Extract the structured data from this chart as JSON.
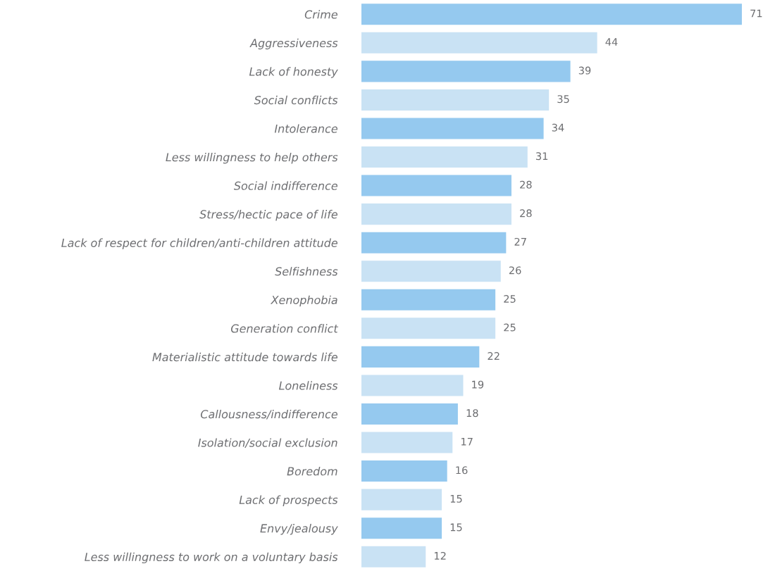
{
  "chart_data": {
    "type": "bar",
    "orientation": "horizontal",
    "data_labels": true,
    "categories": [
      "Crime",
      "Aggressiveness",
      "Lack of honesty",
      "Social conflicts",
      "Intolerance",
      "Less willingness to help others",
      "Social indifference",
      "Stress/hectic pace of life",
      "Lack of respect for children/anti-children attitude",
      "Selfishness",
      "Xenophobia",
      "Generation conflict",
      "Materialistic attitude towards life",
      "Loneliness",
      "Callousness/indifference",
      "Isolation/social exclusion",
      "Boredom",
      "Lack of prospects",
      "Envy/jealousy",
      "Less willingness to work on a voluntary basis"
    ],
    "values": [
      71,
      44,
      39,
      35,
      34,
      31,
      28,
      28,
      27,
      26,
      25,
      25,
      22,
      19,
      18,
      17,
      16,
      15,
      15,
      12
    ],
    "colors": [
      "#95c9ef",
      "#c9e2f4",
      "#95c9ef",
      "#c9e2f4",
      "#95c9ef",
      "#c9e2f4",
      "#95c9ef",
      "#c9e2f4",
      "#95c9ef",
      "#c9e2f4",
      "#95c9ef",
      "#c9e2f4",
      "#95c9ef",
      "#c9e2f4",
      "#95c9ef",
      "#c9e2f4",
      "#95c9ef",
      "#c9e2f4",
      "#95c9ef",
      "#c9e2f4"
    ],
    "grid": false,
    "legend": false,
    "tick_labels": "y"
  }
}
